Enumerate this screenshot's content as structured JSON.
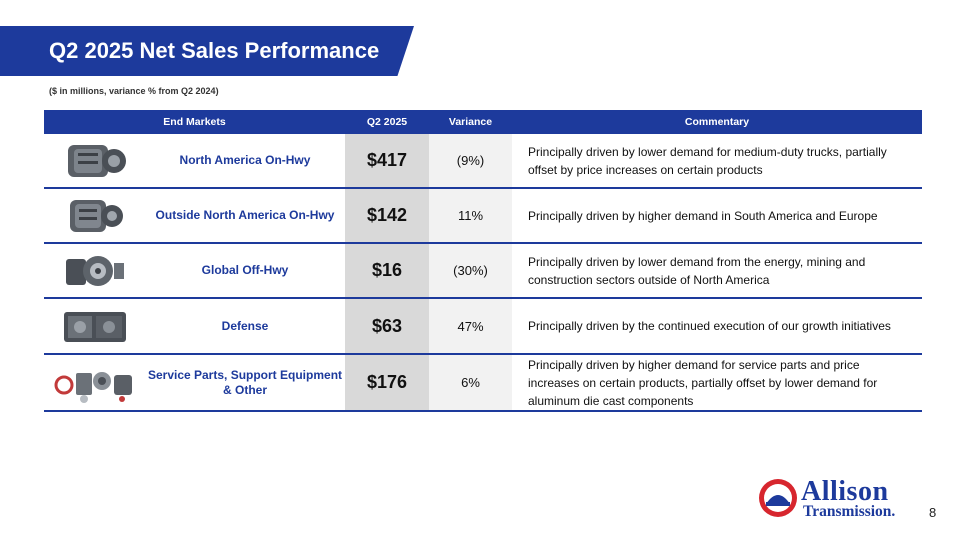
{
  "title": "Q2 2025 Net Sales Performance",
  "subtitle": "($ in millions, variance % from Q2 2024)",
  "table": {
    "headers": {
      "market": "End Markets",
      "q": "Q2 2025",
      "variance": "Variance",
      "commentary": "Commentary"
    },
    "rows": [
      {
        "market": "North America On-Hwy",
        "value": "$417",
        "variance": "(9%)",
        "commentary": "Principally driven by lower demand for medium-duty trucks, partially offset by price increases on certain products",
        "icon": "transmission-icon"
      },
      {
        "market": "Outside North America On-Hwy",
        "value": "$142",
        "variance": "11%",
        "commentary": "Principally driven by higher demand in South America and Europe",
        "icon": "transmission-icon"
      },
      {
        "market": "Global Off-Hwy",
        "value": "$16",
        "variance": "(30%)",
        "commentary": "Principally driven by lower demand from the energy, mining and construction sectors outside of North America",
        "icon": "offhighway-transmission-icon"
      },
      {
        "market": "Defense",
        "value": "$63",
        "variance": "47%",
        "commentary": "Principally driven by the continued execution of our growth initiatives",
        "icon": "defense-transmission-icon"
      },
      {
        "market": "Service Parts, Support Equipment & Other",
        "value": "$176",
        "variance": "6%",
        "commentary": "Principally driven by higher demand for service parts and price increases on certain products, partially offset by lower demand for aluminum die cast components",
        "icon": "service-parts-icon"
      }
    ]
  },
  "logo": {
    "line1": "Allison",
    "line2": "Transmission."
  },
  "page_number": "8",
  "colors": {
    "brand_blue": "#1d3a9c",
    "brand_red": "#d7262e"
  }
}
